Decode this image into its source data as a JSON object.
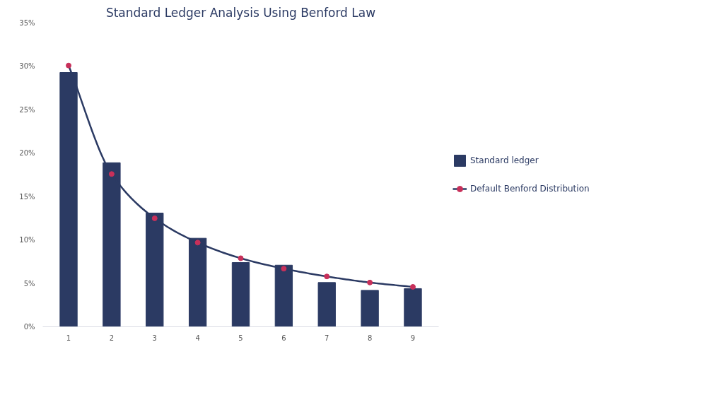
{
  "chart_data": {
    "type": "bar",
    "title": "Standard Ledger Analysis Using Benford Law",
    "categories": [
      "1",
      "2",
      "3",
      "4",
      "5",
      "6",
      "7",
      "8",
      "9"
    ],
    "series": [
      {
        "name": "Standard ledger",
        "color": "#2b3a63",
        "values": [
          29.3,
          18.9,
          13.1,
          10.2,
          7.4,
          7.1,
          5.1,
          4.2,
          4.4
        ]
      },
      {
        "name": "Default Benford Distribution",
        "type": "line",
        "color": "#2b3a63",
        "colors": [
          "#c8305a",
          "#c8305a",
          "#c8305a",
          "#c8305a",
          "#c8305a",
          "#c8305a",
          "#c8305a",
          "#c8305a",
          "#c8305a"
        ],
        "values": [
          30.1,
          17.6,
          12.5,
          9.7,
          7.9,
          6.7,
          5.8,
          5.1,
          4.6
        ]
      }
    ],
    "ylim": [
      0,
      35
    ],
    "yticks": [
      {
        "value": 0,
        "label": "0%"
      },
      {
        "value": 5,
        "label": "5%"
      },
      {
        "value": 10,
        "label": "10%"
      },
      {
        "value": 15,
        "label": "15%"
      },
      {
        "value": 20,
        "label": "20%"
      },
      {
        "value": 25,
        "label": "25%"
      },
      {
        "value": 30,
        "label": "30%"
      },
      {
        "value": 35,
        "label": "35%"
      }
    ],
    "grid": false,
    "legend": "right",
    "marker": "circle"
  }
}
